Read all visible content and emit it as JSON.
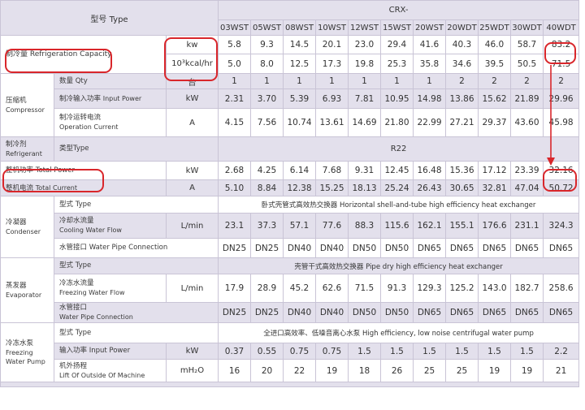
{
  "header": {
    "model_label": "型号 Type",
    "series": "CRX-",
    "models": [
      "03WST",
      "05WST",
      "08WST",
      "10WST",
      "12WST",
      "15WST",
      "20WST",
      "20WDT",
      "25WDT",
      "30WDT",
      "40WDT"
    ]
  },
  "refrigeration_capacity": {
    "label": "制冷量    Refrigeration Capacity",
    "rows": [
      {
        "unit": "kw",
        "values": [
          "5.8",
          "9.3",
          "14.5",
          "20.1",
          "23.0",
          "29.4",
          "41.6",
          "40.3",
          "46.0",
          "58.7",
          "83.2"
        ]
      },
      {
        "unit": "10³kcal/hr",
        "values": [
          "5.0",
          "8.0",
          "12.5",
          "17.3",
          "19.8",
          "25.3",
          "35.8",
          "34.6",
          "39.5",
          "50.5",
          "71.5"
        ]
      }
    ]
  },
  "compressor": {
    "group_zh": "压缩机",
    "group_en": "Compressor",
    "qty": {
      "label": "数量   Qty",
      "unit": "台",
      "values": [
        "1",
        "1",
        "1",
        "1",
        "1",
        "1",
        "1",
        "2",
        "2",
        "2",
        "2"
      ]
    },
    "input_power": {
      "label_zh": "制冷输入功率",
      "label_en": "Input Power",
      "unit": "kW",
      "values": [
        "2.31",
        "3.70",
        "5.39",
        "6.93",
        "7.81",
        "10.95",
        "14.98",
        "13.86",
        "15.62",
        "21.89",
        "29.96"
      ]
    },
    "current": {
      "label_zh": "制冷运转电流",
      "label_en": "Operation Current",
      "unit": "A",
      "values": [
        "4.15",
        "7.56",
        "10.74",
        "13.61",
        "14.69",
        "21.80",
        "22.99",
        "27.21",
        "29.37",
        "43.60",
        "45.98"
      ]
    }
  },
  "refrigerant": {
    "group_zh": "制冷剂",
    "group_en": "Refrigerant",
    "type_label": "类型Type",
    "type_value": "R22"
  },
  "total_power": {
    "label": "整机功率 Total Power",
    "unit": "kW",
    "values": [
      "2.68",
      "4.25",
      "6.14",
      "7.68",
      "9.31",
      "12.45",
      "16.48",
      "15.36",
      "17.12",
      "23.39",
      "32.16"
    ]
  },
  "total_current": {
    "label_zh": "整机电流",
    "label_en": "Total Current",
    "unit": "A",
    "values": [
      "5.10",
      "8.84",
      "12.38",
      "15.25",
      "18.13",
      "25.24",
      "26.43",
      "30.65",
      "32.81",
      "47.04",
      "50.72"
    ]
  },
  "condenser": {
    "group_zh": "冷凝器",
    "group_en": "Condenser",
    "type_label": "型式  Type",
    "type_value": "卧式壳管式高效热交换器 Horizontal shell-and-tube high efficiency heat exchanger",
    "flow": {
      "label_zh": "冷却水流量",
      "label_en": "Cooling Water Flow",
      "unit": "L/min",
      "values": [
        "23.1",
        "37.3",
        "57.1",
        "77.6",
        "88.3",
        "115.6",
        "162.1",
        "155.1",
        "176.6",
        "231.1",
        "324.3"
      ]
    },
    "pipe": {
      "label": "水管接口  Water Pipe Connection",
      "values": [
        "DN25",
        "DN25",
        "DN40",
        "DN40",
        "DN50",
        "DN50",
        "DN65",
        "DN65",
        "DN65",
        "DN65",
        "DN65"
      ]
    }
  },
  "evaporator": {
    "group_zh": "蒸发器",
    "group_en": "Evaporator",
    "type_label": "型式  Type",
    "type_value": "壳管干式高效热交换器 Pipe dry high efficiency heat exchanger",
    "flow": {
      "label_zh": "冷冻水流量",
      "label_en": "Freezing Water Flow",
      "unit": "L/min",
      "values": [
        "17.9",
        "28.9",
        "45.2",
        "62.6",
        "71.5",
        "91.3",
        "129.3",
        "125.2",
        "143.0",
        "182.7",
        "258.6"
      ]
    },
    "pipe": {
      "label_zh": "水管接口",
      "label_en": "Water Pipe Connection",
      "values": [
        "DN25",
        "DN25",
        "DN40",
        "DN40",
        "DN50",
        "DN50",
        "DN65",
        "DN65",
        "DN65",
        "DN65",
        "DN65"
      ]
    }
  },
  "pump": {
    "group_zh": "冷冻水泵",
    "group_en1": "Freezing",
    "group_en2": "Water Pump",
    "type_label": "型式  Type",
    "type_value": "全进口高效率、低噪音离心水泵  High efficiency,  low noise  centrifugal water pump",
    "power": {
      "label": "输入功率 Input Power",
      "unit": "kW",
      "values": [
        "0.37",
        "0.55",
        "0.75",
        "0.75",
        "1.5",
        "1.5",
        "1.5",
        "1.5",
        "1.5",
        "1.5",
        "2.2"
      ]
    },
    "lift": {
      "label_zh": "机外扬程",
      "label_en": "Lift Of Outside Of Machine",
      "unit": "mH₂O",
      "values": [
        "16",
        "20",
        "22",
        "19",
        "18",
        "26",
        "25",
        "25",
        "19",
        "19",
        "21"
      ]
    }
  },
  "colors": {
    "shade": "#e3e0ec",
    "annotation": "#d9262b",
    "border": "#c9c4d6"
  }
}
